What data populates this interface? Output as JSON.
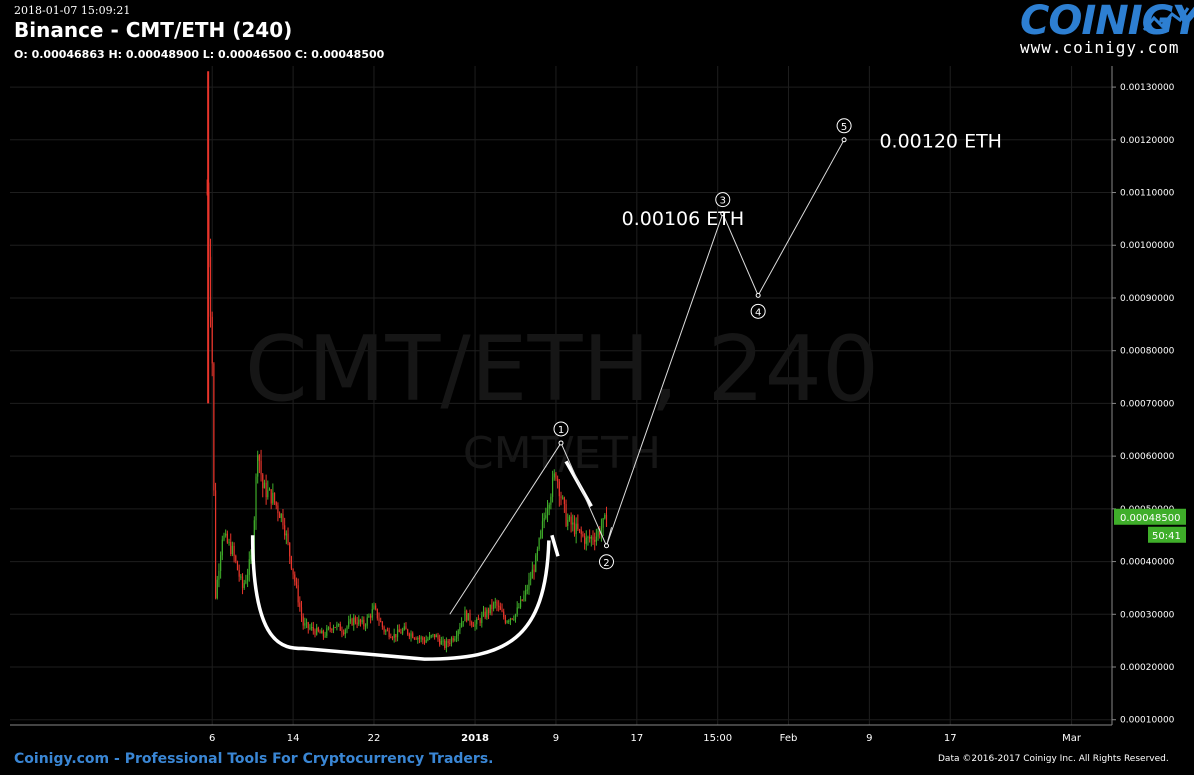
{
  "header": {
    "datetime": "2018-01-07 15:09:21",
    "title": "Binance - CMT/ETH (240)",
    "ohlc": "O: 0.00046863 H: 0.00048900 L: 0.00046500 C: 0.00048500"
  },
  "logo": {
    "word": "COINIGY",
    "url": "www.coinigy.com"
  },
  "footer": {
    "left": "Coinigy.com - Professional Tools For Cryptocurrency Traders.",
    "right": "Data ©2016-2017 Coinigy Inc. All Rights Reserved."
  },
  "colors": {
    "background": "#000000",
    "up": "#3fae2a",
    "down": "#e8352b",
    "grid": "#1e1e1e",
    "brand": "#2d7fd2"
  },
  "chart_data": {
    "type": "candlestick",
    "watermark_main": "CMT/ETH, 240",
    "watermark_sub": "CMT/ETH",
    "ylim": [
      9e-05,
      0.00134
    ],
    "y_ticks": [
      "0.00010000",
      "0.00020000",
      "0.00030000",
      "0.00040000",
      "0.00050000",
      "0.00060000",
      "0.00070000",
      "0.00080000",
      "0.00090000",
      "0.00100000",
      "0.00110000",
      "0.00120000",
      "0.00130000"
    ],
    "x_ticks": [
      "6",
      "14",
      "22",
      "2018",
      "9",
      "17",
      "15:00",
      "Feb",
      "9",
      "17",
      "Mar"
    ],
    "x_tick_days": [
      5,
      13,
      21,
      31,
      39,
      47,
      55,
      62,
      70,
      78,
      90
    ],
    "x_range_days": [
      -15,
      94
    ],
    "grid": true,
    "current_price_label": "0.00048500",
    "countdown_label": "50:41",
    "price_path": [
      [
        4.5,
        0.0011
      ],
      [
        5,
        0.00078
      ],
      [
        5.3,
        0.00033
      ],
      [
        6,
        0.00045
      ],
      [
        7,
        0.00042
      ],
      [
        8,
        0.00035
      ],
      [
        8.5,
        0.00038
      ],
      [
        9,
        0.00042
      ],
      [
        9.5,
        0.00062
      ],
      [
        10,
        0.00054
      ],
      [
        11,
        0.00052
      ],
      [
        12,
        0.00048
      ],
      [
        13,
        0.00038
      ],
      [
        14,
        0.00028
      ],
      [
        15,
        0.00027
      ],
      [
        16,
        0.00026
      ],
      [
        17,
        0.00028
      ],
      [
        18,
        0.00027
      ],
      [
        19,
        0.00029
      ],
      [
        20,
        0.00028
      ],
      [
        21,
        0.00031
      ],
      [
        22,
        0.00027
      ],
      [
        23,
        0.00026
      ],
      [
        24,
        0.00027
      ],
      [
        25,
        0.00026
      ],
      [
        26,
        0.00025
      ],
      [
        27,
        0.00026
      ],
      [
        28,
        0.00024
      ],
      [
        29,
        0.00026
      ],
      [
        30,
        0.0003
      ],
      [
        31,
        0.00028
      ],
      [
        32,
        0.0003
      ],
      [
        33,
        0.00032
      ],
      [
        34,
        0.00029
      ],
      [
        35,
        0.0003
      ],
      [
        36,
        0.00034
      ],
      [
        37,
        0.0004
      ],
      [
        38,
        0.0005
      ],
      [
        39,
        0.00057
      ],
      [
        40,
        0.00048
      ],
      [
        41,
        0.00046
      ],
      [
        42,
        0.00044
      ],
      [
        43,
        0.00045
      ],
      [
        44,
        0.00048
      ]
    ],
    "wave_points": [
      {
        "label": "1",
        "day": 39.5,
        "price": 0.000625
      },
      {
        "label": "2",
        "day": 44.0,
        "price": 0.00043
      },
      {
        "label": "3",
        "day": 55.5,
        "price": 0.00106
      },
      {
        "label": "4",
        "day": 59.0,
        "price": 0.000905
      },
      {
        "label": "5",
        "day": 67.5,
        "price": 0.0012
      }
    ],
    "annotations": [
      {
        "text": "0.00106 ETH",
        "day": 45.5,
        "price": 0.001038
      },
      {
        "text": "0.00120 ETH",
        "day": 71.0,
        "price": 0.001185
      }
    ]
  }
}
